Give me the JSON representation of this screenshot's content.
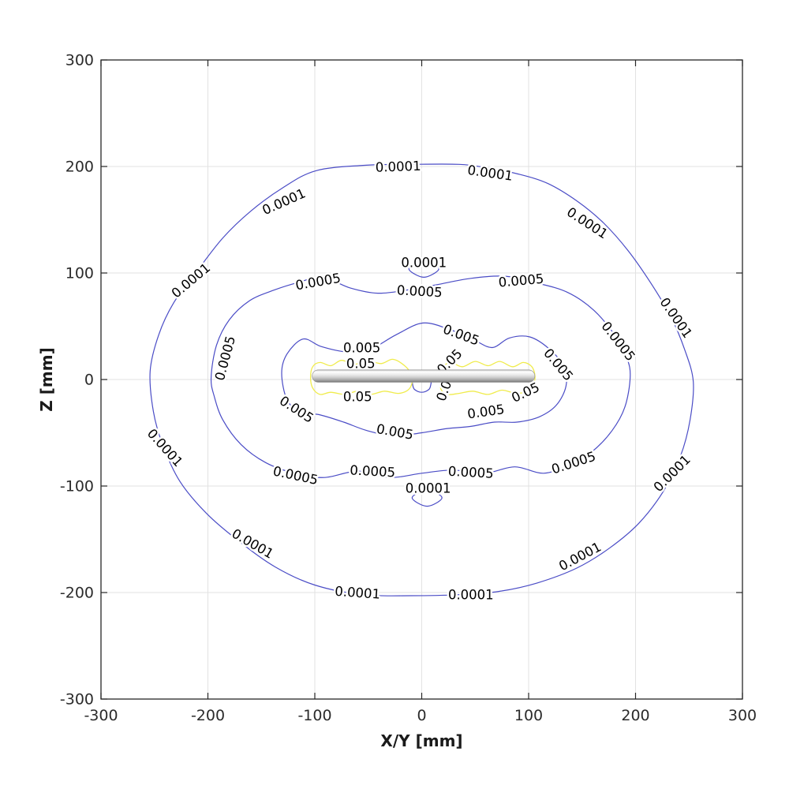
{
  "page": {
    "background": "#ffffff"
  },
  "chart_data": {
    "type": "contour",
    "title": "",
    "xlabel": "X/Y [mm]",
    "ylabel": "Z [mm]",
    "xlim": [
      -300,
      300
    ],
    "ylim": [
      -300,
      300
    ],
    "xticks": [
      -300,
      -200,
      -100,
      0,
      100,
      200,
      300
    ],
    "yticks": [
      -300,
      -200,
      -100,
      0,
      100,
      200,
      300
    ],
    "grid": true,
    "legend": "none",
    "colors": {
      "axis": "#262626",
      "grid": "#e2e2e2",
      "tick_label": "#2b2b2b",
      "contour_blue": "#4a4cc6",
      "contour_yellow": "#f0ec4c",
      "label_text": "#000000"
    },
    "levels": [
      0.0001,
      0.0005,
      0.005,
      0.05
    ],
    "contours": [
      {
        "level": 0.0001,
        "color": "#4a4cc6",
        "closed": true,
        "width": 1.2,
        "points": [
          [
            -55,
            201
          ],
          [
            -10,
            202
          ],
          [
            35,
            202
          ],
          [
            60,
            199
          ],
          [
            90,
            193
          ],
          [
            118,
            184
          ],
          [
            146,
            167
          ],
          [
            170,
            147
          ],
          [
            193,
            121
          ],
          [
            214,
            91
          ],
          [
            233,
            59
          ],
          [
            246,
            28
          ],
          [
            254,
            -2
          ],
          [
            251,
            -38
          ],
          [
            242,
            -72
          ],
          [
            226,
            -105
          ],
          [
            203,
            -135
          ],
          [
            176,
            -158
          ],
          [
            145,
            -177
          ],
          [
            108,
            -191
          ],
          [
            72,
            -199
          ],
          [
            35,
            -202
          ],
          [
            -10,
            -203
          ],
          [
            -55,
            -202
          ],
          [
            -100,
            -193
          ],
          [
            -137,
            -176
          ],
          [
            -172,
            -151
          ],
          [
            -201,
            -126
          ],
          [
            -226,
            -96
          ],
          [
            -242,
            -62
          ],
          [
            -251,
            -30
          ],
          [
            -254,
            8
          ],
          [
            -246,
            42
          ],
          [
            -232,
            72
          ],
          [
            -210,
            102
          ],
          [
            -186,
            133
          ],
          [
            -160,
            158
          ],
          [
            -130,
            180
          ],
          [
            -99,
            196
          ]
        ]
      },
      {
        "level": 0.0001,
        "color": "#4a4cc6",
        "closed": true,
        "width": 1.2,
        "points": [
          [
            -12,
            104
          ],
          [
            2,
            111
          ],
          [
            16,
            104
          ],
          [
            2,
            96
          ]
        ]
      },
      {
        "level": 0.0001,
        "color": "#4a4cc6",
        "closed": true,
        "width": 1.2,
        "points": [
          [
            -9,
            -111
          ],
          [
            5,
            -104
          ],
          [
            19,
            -111
          ],
          [
            5,
            -119
          ]
        ]
      },
      {
        "level": 0.0005,
        "color": "#4a4cc6",
        "closed": true,
        "width": 1.2,
        "points": [
          [
            -197,
            2
          ],
          [
            -192,
            32
          ],
          [
            -180,
            56
          ],
          [
            -161,
            74
          ],
          [
            -138,
            84
          ],
          [
            -116,
            91
          ],
          [
            -93,
            96
          ],
          [
            -67,
            86
          ],
          [
            -41,
            81
          ],
          [
            -14,
            84
          ],
          [
            14,
            89
          ],
          [
            46,
            95
          ],
          [
            78,
            97
          ],
          [
            106,
            91
          ],
          [
            136,
            82
          ],
          [
            161,
            65
          ],
          [
            181,
            41
          ],
          [
            192,
            20
          ],
          [
            195,
            2
          ],
          [
            190,
            -26
          ],
          [
            178,
            -48
          ],
          [
            159,
            -68
          ],
          [
            138,
            -80
          ],
          [
            114,
            -88
          ],
          [
            87,
            -82
          ],
          [
            59,
            -88
          ],
          [
            29,
            -85
          ],
          [
            0,
            -88
          ],
          [
            -30,
            -92
          ],
          [
            -60,
            -86
          ],
          [
            -91,
            -92
          ],
          [
            -119,
            -88
          ],
          [
            -146,
            -78
          ],
          [
            -169,
            -61
          ],
          [
            -186,
            -38
          ],
          [
            -194,
            -16
          ]
        ]
      },
      {
        "level": 0.005,
        "color": "#4a4cc6",
        "closed": true,
        "width": 1.2,
        "points": [
          [
            -131,
            6
          ],
          [
            -126,
            24
          ],
          [
            -111,
            38
          ],
          [
            -94,
            31
          ],
          [
            -71,
            26
          ],
          [
            -49,
            28
          ],
          [
            -24,
            42
          ],
          [
            1,
            53
          ],
          [
            26,
            47
          ],
          [
            49,
            37
          ],
          [
            66,
            30
          ],
          [
            82,
            39
          ],
          [
            101,
            40
          ],
          [
            119,
            29
          ],
          [
            133,
            12
          ],
          [
            135,
            -6
          ],
          [
            126,
            -24
          ],
          [
            110,
            -35
          ],
          [
            89,
            -40
          ],
          [
            68,
            -40
          ],
          [
            46,
            -44
          ],
          [
            24,
            -46
          ],
          [
            0,
            -50
          ],
          [
            -26,
            -53
          ],
          [
            -51,
            -48
          ],
          [
            -73,
            -40
          ],
          [
            -96,
            -33
          ],
          [
            -113,
            -31
          ],
          [
            -126,
            -19
          ]
        ]
      },
      {
        "level": 0.005,
        "color": "#4a4cc6",
        "closed": false,
        "width": 1.2,
        "points": [
          [
            -9,
            -2
          ],
          [
            -7,
            -9
          ],
          [
            0,
            -12
          ],
          [
            7,
            -9
          ],
          [
            9,
            -2
          ]
        ]
      },
      {
        "level": 0.05,
        "color": "#f0ec4c",
        "closed": true,
        "width": 1.3,
        "points": [
          [
            -104,
            2
          ],
          [
            -102,
            12
          ],
          [
            -95,
            16
          ],
          [
            -85,
            13
          ],
          [
            -75,
            18
          ],
          [
            -63,
            14
          ],
          [
            -52,
            18
          ],
          [
            -38,
            15
          ],
          [
            -27,
            19
          ],
          [
            -16,
            13
          ],
          [
            -10,
            5
          ],
          [
            -9,
            -3
          ],
          [
            -13,
            -10
          ],
          [
            -22,
            -13
          ],
          [
            -35,
            -11
          ],
          [
            -48,
            -14
          ],
          [
            -60,
            -11
          ],
          [
            -72,
            -14
          ],
          [
            -85,
            -12
          ],
          [
            -95,
            -14
          ],
          [
            -102,
            -8
          ]
        ]
      },
      {
        "level": 0.05,
        "color": "#f0ec4c",
        "closed": true,
        "width": 1.3,
        "points": [
          [
            17,
            3
          ],
          [
            19,
            11
          ],
          [
            27,
            16
          ],
          [
            38,
            12
          ],
          [
            50,
            17
          ],
          [
            62,
            13
          ],
          [
            73,
            17
          ],
          [
            85,
            12
          ],
          [
            95,
            16
          ],
          [
            103,
            12
          ],
          [
            106,
            3
          ],
          [
            104,
            -5
          ],
          [
            98,
            -11
          ],
          [
            88,
            -13
          ],
          [
            75,
            -10
          ],
          [
            62,
            -14
          ],
          [
            48,
            -11
          ],
          [
            35,
            -13
          ],
          [
            24,
            -14
          ],
          [
            18,
            -9
          ]
        ]
      }
    ],
    "contour_labels": [
      {
        "text": "0.0001",
        "x": -22,
        "z": 200,
        "rot": -2
      },
      {
        "text": "0.0001",
        "x": 64,
        "z": 194,
        "rot": 8
      },
      {
        "text": "0.0001",
        "x": 155,
        "z": 147,
        "rot": 33
      },
      {
        "text": "0.0001",
        "x": 238,
        "z": 58,
        "rot": 55
      },
      {
        "text": "0.0001",
        "x": -216,
        "z": 93,
        "rot": -40
      },
      {
        "text": "0.0001",
        "x": -129,
        "z": 167,
        "rot": -24
      },
      {
        "text": "0.0001",
        "x": -240,
        "z": -64,
        "rot": 48
      },
      {
        "text": "0.0001",
        "x": -158,
        "z": -154,
        "rot": 30
      },
      {
        "text": "0.0001",
        "x": -60,
        "z": -200,
        "rot": 4
      },
      {
        "text": "0.0001",
        "x": 46,
        "z": -202,
        "rot": 0
      },
      {
        "text": "0.0001",
        "x": 148,
        "z": -166,
        "rot": -28
      },
      {
        "text": "0.0001",
        "x": 234,
        "z": -88,
        "rot": -45
      },
      {
        "text": "0.0001",
        "x": 2,
        "z": 110,
        "rot": 0
      },
      {
        "text": "0.0001",
        "x": 6,
        "z": -102,
        "rot": 0
      },
      {
        "text": "0.0005",
        "x": -97,
        "z": 92,
        "rot": -10
      },
      {
        "text": "0.0005",
        "x": -2,
        "z": 83,
        "rot": 3
      },
      {
        "text": "0.0005",
        "x": 93,
        "z": 93,
        "rot": -5
      },
      {
        "text": "0.0005",
        "x": -184,
        "z": 20,
        "rot": -75
      },
      {
        "text": "0.0005",
        "x": -118,
        "z": -90,
        "rot": 12
      },
      {
        "text": "0.0005",
        "x": -46,
        "z": -86,
        "rot": 3
      },
      {
        "text": "0.0005",
        "x": 46,
        "z": -87,
        "rot": 3
      },
      {
        "text": "0.0005",
        "x": 142,
        "z": -78,
        "rot": -18
      },
      {
        "text": "0.0005",
        "x": 184,
        "z": 36,
        "rot": 52
      },
      {
        "text": "0.005",
        "x": -56,
        "z": 30,
        "rot": 0
      },
      {
        "text": "0.005",
        "x": 37,
        "z": 42,
        "rot": 20
      },
      {
        "text": "0.005",
        "x": -117,
        "z": -28,
        "rot": 33
      },
      {
        "text": "0.005",
        "x": -25,
        "z": -49,
        "rot": 10
      },
      {
        "text": "0.005",
        "x": 60,
        "z": -30,
        "rot": -8
      },
      {
        "text": "0.005",
        "x": 128,
        "z": 14,
        "rot": 50
      },
      {
        "text": "0.05",
        "x": -57,
        "z": 15,
        "rot": 0
      },
      {
        "text": "0.05",
        "x": 26,
        "z": 17,
        "rot": -45
      },
      {
        "text": "0.05",
        "x": -60,
        "z": -16,
        "rot": 0
      },
      {
        "text": "0.05",
        "x": 97,
        "z": -12,
        "rot": -25
      },
      {
        "text": "0.05",
        "x": 22,
        "z": -7,
        "rot": -70
      }
    ],
    "rod": {
      "shape": "cylinder",
      "x1": -102.5,
      "x2": 105.8,
      "z_top": 9,
      "z_bottom": -2.6,
      "gradient": [
        "#bdbdbd",
        "#ffffff",
        "#ececec",
        "#cccccc",
        "#9c9c9c",
        "#717171"
      ]
    }
  }
}
